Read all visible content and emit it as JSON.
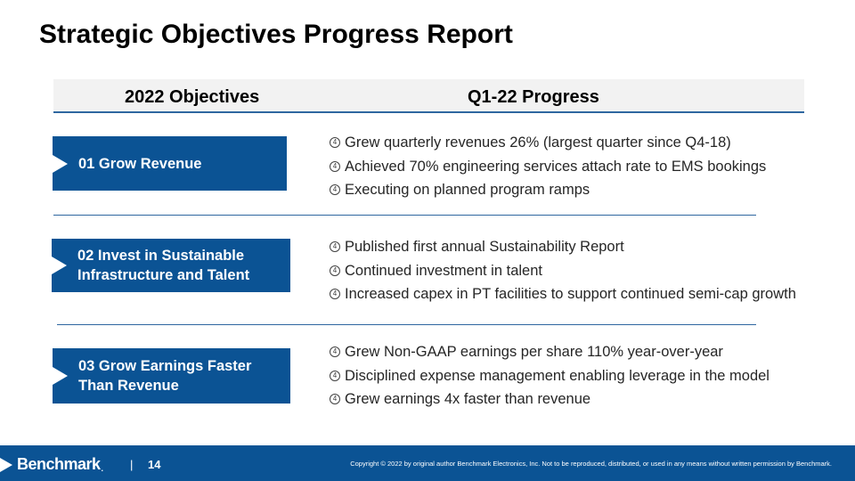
{
  "title": "Strategic Objectives Progress Report",
  "header": {
    "left": "2022 Objectives",
    "right": "Q1-22 Progress"
  },
  "bullet_glyph": "④",
  "objectives": [
    {
      "label_line1": "01 Grow Revenue",
      "label_line2": "",
      "progress": [
        "Grew quarterly revenues 26% (largest quarter since Q4-18)",
        "Achieved 70% engineering services attach rate to EMS bookings",
        "Executing on planned program ramps"
      ]
    },
    {
      "label_line1": "02 Invest in Sustainable",
      "label_line2": "Infrastructure and Talent",
      "progress": [
        "Published first annual Sustainability Report",
        "Continued investment in talent",
        "Increased capex in PT facilities to support continued semi-cap growth"
      ]
    },
    {
      "label_line1": "03 Grow Earnings Faster",
      "label_line2": "Than Revenue",
      "progress": [
        "Grew Non-GAAP earnings per share 110% year-over-year",
        "Disciplined expense management enabling leverage in the model",
        "Grew earnings 4x faster than revenue"
      ]
    }
  ],
  "footer": {
    "logo_text": "Benchmark",
    "logo_suffix": ".",
    "separator": "|",
    "page_number": "14",
    "copyright": "Copyright © 2022 by original author Benchmark Electronics, Inc. Not to be reproduced, distributed, or used in any means without written permission by Benchmark."
  },
  "colors": {
    "accent_blue": "#0b5394",
    "rule_blue": "#2f67a0",
    "header_gray": "#f2f2f2"
  }
}
